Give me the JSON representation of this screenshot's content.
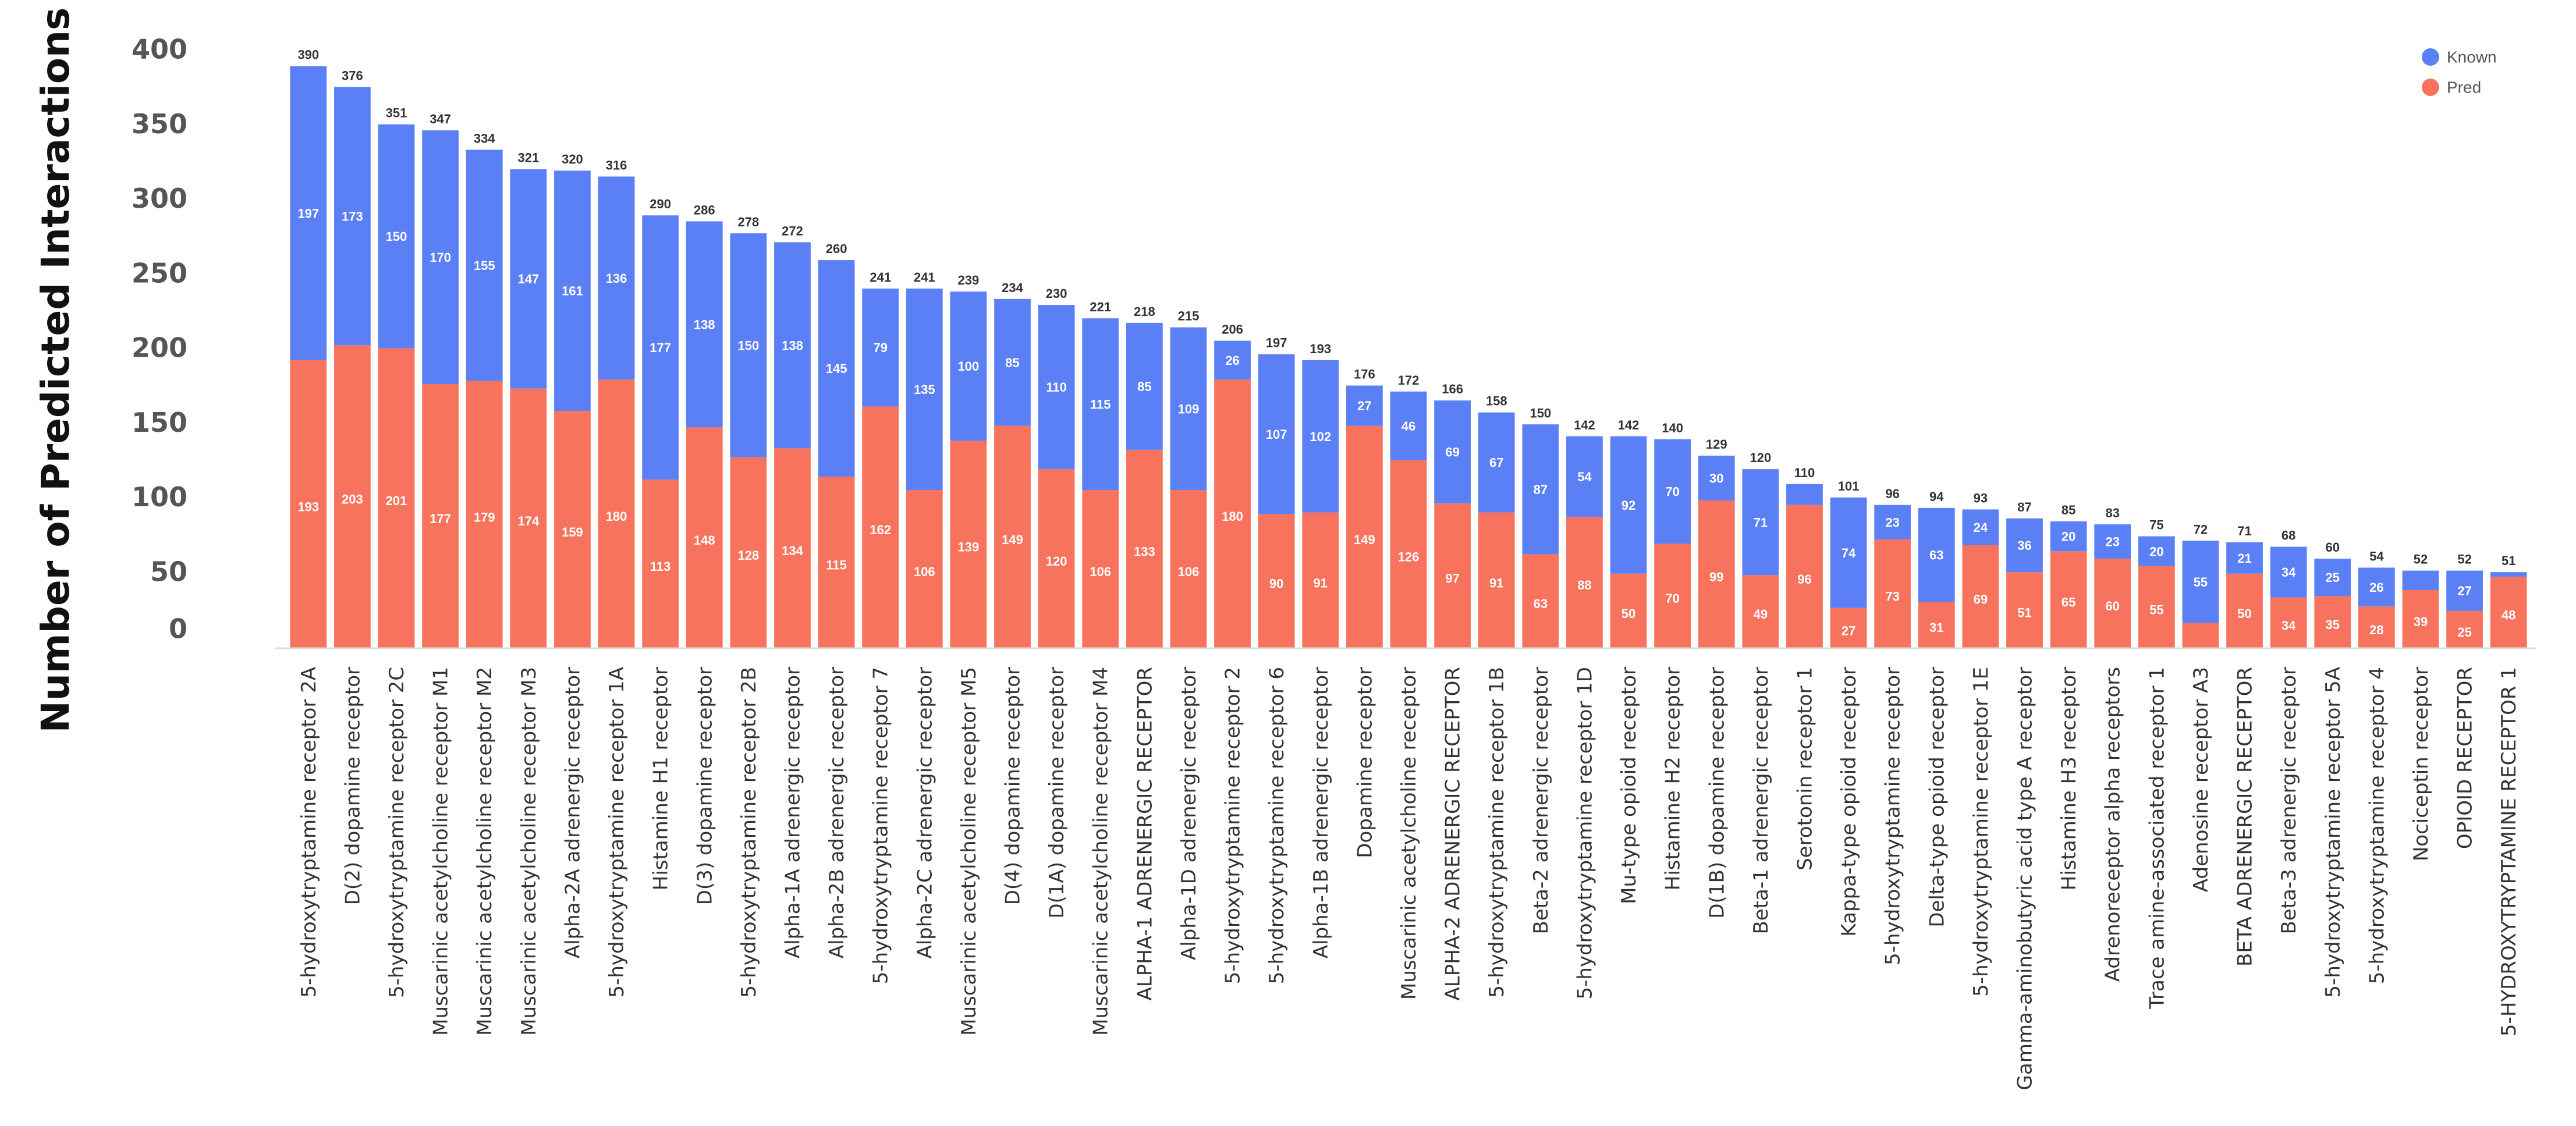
{
  "chart_data": {
    "type": "bar",
    "stacked": true,
    "title": "",
    "xlabel": "",
    "ylabel": "Number of Predicted Interactions",
    "ylim": [
      0,
      400
    ],
    "yticks": [
      0,
      50,
      100,
      150,
      200,
      250,
      300,
      350,
      400
    ],
    "legend": {
      "position": "top-right",
      "entries": [
        "Known",
        "Pred"
      ]
    },
    "colors": {
      "Known": "#5b7ff5",
      "Pred": "#f7735e"
    },
    "categories": [
      "5-hydroxytryptamine receptor 2A",
      "D(2) dopamine receptor",
      "5-hydroxytryptamine receptor 2C",
      "Muscarinic acetylcholine receptor M1",
      "Muscarinic acetylcholine receptor M2",
      "Muscarinic acetylcholine receptor M3",
      "Alpha-2A adrenergic receptor",
      "5-hydroxytryptamine receptor 1A",
      "Histamine H1 receptor",
      "D(3) dopamine receptor",
      "5-hydroxytryptamine receptor 2B",
      "Alpha-1A adrenergic receptor",
      "Alpha-2B adrenergic receptor",
      "5-hydroxytryptamine receptor 7",
      "Alpha-2C adrenergic receptor",
      "Muscarinic acetylcholine receptor M5",
      "D(4) dopamine receptor",
      "D(1A) dopamine receptor",
      "Muscarinic acetylcholine receptor M4",
      "ALPHA-1 ADRENERGIC RECEPTOR",
      "Alpha-1D adrenergic receptor",
      "5-hydroxytryptamine receptor 2",
      "5-hydroxytryptamine receptor 6",
      "Alpha-1B adrenergic receptor",
      "Dopamine receptor",
      "Muscarinic acetylcholine receptor",
      "ALPHA-2 ADRENERGIC RECEPTOR",
      "5-hydroxytryptamine receptor 1B",
      "Beta-2 adrenergic receptor",
      "5-hydroxytryptamine receptor 1D",
      "Mu-type opioid receptor",
      "Histamine H2 receptor",
      "D(1B) dopamine receptor",
      "Beta-1 adrenergic receptor",
      "Serotonin receptor 1",
      "Kappa-type opioid receptor",
      "5-hydroxytryptamine receptor",
      "Delta-type opioid receptor",
      "5-hydroxytryptamine receptor 1E",
      "Gamma-aminobutyric acid type A receptor",
      "Histamine H3 receptor",
      "Adrenoreceptor alpha receptors",
      "Trace amine-associated receptor 1",
      "Adenosine receptor A3",
      "BETA ADRENERGIC RECEPTOR",
      "Beta-3 adrenergic receptor",
      "5-hydroxytryptamine receptor 5A",
      "5-hydroxytryptamine receptor 4",
      "Nociceptin receptor",
      "OPIOID RECEPTOR",
      "5-HYDROXYTRYPTAMINE RECEPTOR 1"
    ],
    "series": [
      {
        "name": "Pred",
        "values": [
          193,
          203,
          201,
          177,
          179,
          174,
          159,
          180,
          113,
          148,
          128,
          134,
          115,
          162,
          106,
          139,
          149,
          120,
          106,
          133,
          106,
          180,
          90,
          91,
          149,
          126,
          97,
          91,
          63,
          88,
          50,
          70,
          99,
          49,
          96,
          27,
          73,
          31,
          69,
          51,
          65,
          60,
          55,
          17,
          50,
          34,
          35,
          28,
          39,
          25,
          48
        ]
      },
      {
        "name": "Known",
        "values": [
          197,
          173,
          150,
          170,
          155,
          147,
          161,
          136,
          177,
          138,
          150,
          138,
          145,
          79,
          135,
          100,
          85,
          110,
          115,
          85,
          109,
          26,
          107,
          102,
          27,
          46,
          69,
          67,
          87,
          54,
          92,
          70,
          30,
          71,
          14,
          74,
          23,
          63,
          24,
          36,
          20,
          23,
          20,
          55,
          21,
          34,
          25,
          26,
          13,
          27,
          3
        ]
      }
    ],
    "totals": [
      390,
      376,
      351,
      347,
      334,
      321,
      320,
      316,
      290,
      286,
      278,
      272,
      260,
      241,
      241,
      239,
      234,
      230,
      221,
      218,
      215,
      206,
      197,
      193,
      176,
      172,
      166,
      158,
      150,
      142,
      142,
      140,
      129,
      120,
      110,
      101,
      96,
      94,
      93,
      87,
      85,
      83,
      75,
      72,
      71,
      68,
      60,
      54,
      52,
      52,
      51
    ],
    "segment_labels": {
      "Pred": [
        "193",
        "203",
        "201",
        "177",
        "179",
        "174",
        "159",
        "180",
        "113",
        "148",
        "128",
        "134",
        "115",
        "162",
        "106",
        "139",
        "149",
        "120",
        "106",
        "133",
        "106",
        "180",
        "90",
        "91",
        "149",
        "126",
        "97",
        "91",
        "63",
        "88",
        "50",
        "70",
        "99",
        "49",
        "96",
        "27",
        "73",
        "31",
        "69",
        "51",
        "65",
        "60",
        "55",
        "",
        "50",
        "34",
        "35",
        "28",
        "39",
        "25",
        "48"
      ],
      "Known": [
        "197",
        "173",
        "150",
        "170",
        "155",
        "147",
        "161",
        "136",
        "177",
        "138",
        "150",
        "138",
        "145",
        "79",
        "135",
        "100",
        "85",
        "110",
        "115",
        "85",
        "109",
        "26",
        "107",
        "102",
        "27",
        "46",
        "69",
        "67",
        "87",
        "54",
        "92",
        "70",
        "30",
        "71",
        "",
        "74",
        "23",
        "63",
        "24",
        "36",
        "20",
        "23",
        "20",
        "55",
        "21",
        "34",
        "25",
        "26",
        "",
        "27",
        ""
      ]
    }
  }
}
